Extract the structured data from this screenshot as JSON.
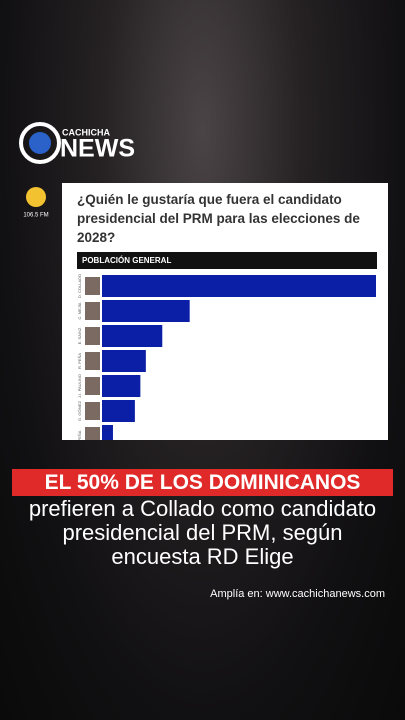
{
  "brand": {
    "top": "CACHICHA",
    "main": "NEWS"
  },
  "radio": {
    "frequency": "106.5 FM"
  },
  "chart_data": {
    "type": "bar",
    "orientation": "horizontal",
    "title": "¿Quién le gustaría que fuera el candidato presidencial del PRM para las elecciones de 2028?",
    "subtitle": "POBLACIÓN GENERAL",
    "categories": [
      "D. COLLADO",
      "C. MEJÍA",
      "E. SAINZ",
      "R. PEÑA",
      "J.I. PAULINO",
      "G. GÓMEZ",
      "PEÑA"
    ],
    "values": [
      50,
      16,
      11,
      8,
      7,
      6,
      2
    ],
    "color": "#0b1fa6",
    "xlim": [
      0,
      50
    ]
  },
  "caption": {
    "highlight": "EL 50% DE LOS DOMINICANOS",
    "lines": [
      "prefieren a Collado como candidato",
      "presidencial del PRM, según",
      "encuesta RD Elige"
    ]
  },
  "source": "Amplía en: www.cachichanews.com"
}
